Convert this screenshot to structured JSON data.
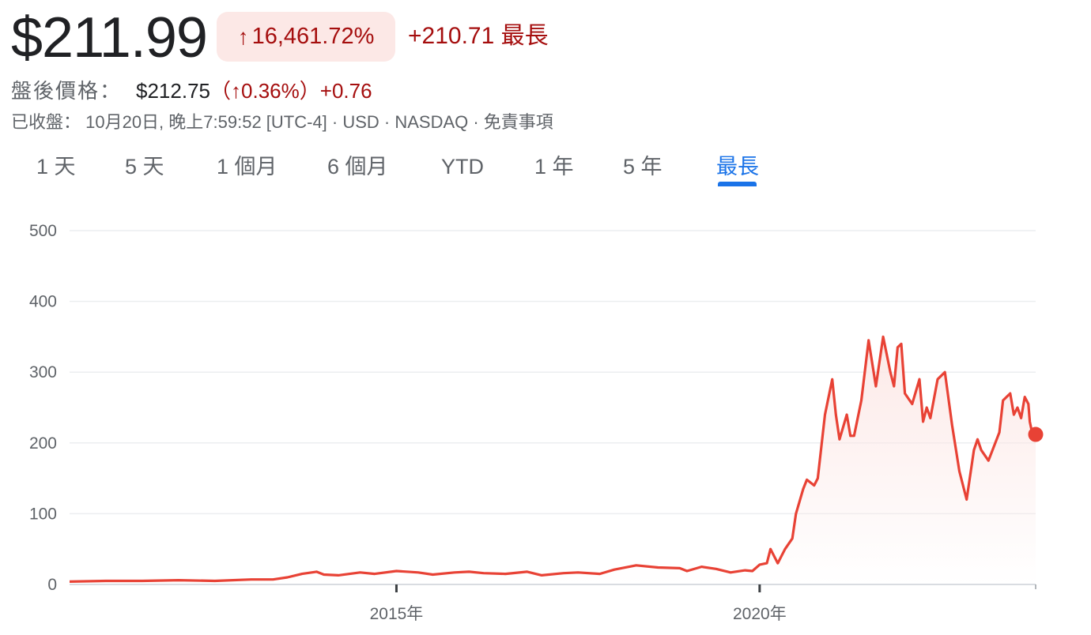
{
  "header": {
    "price": "$211.99",
    "change_arrow": "↑",
    "change_pct": "16,461.72%",
    "change_abs_period": "+210.71 最長"
  },
  "after_hours": {
    "label": "盤後價格：",
    "price": "$212.75",
    "open_paren": "（",
    "arrow": "↑",
    "pct": "0.36%",
    "close_paren": "）",
    "abs": "+0.76"
  },
  "meta": "已收盤： 10月20日, 晚上7:59:52 [UTC-4] · USD · NASDAQ · 免責事項",
  "tabs": [
    "1 天",
    "5 天",
    "1 個月",
    "6 個月",
    "YTD",
    "1 年",
    "5 年",
    "最長"
  ],
  "active_tab": "最長",
  "colors": {
    "line": "#e84235",
    "fill": "#fce8e6",
    "badge_bg": "#fce8e6",
    "negative_text": "#a50e0e",
    "accent": "#1a73e8"
  },
  "chart_data": {
    "type": "area",
    "x_ticks": [
      "2015年",
      "2020年"
    ],
    "y_ticks": [
      0,
      100,
      200,
      300,
      400,
      500
    ],
    "ylim": [
      0,
      500
    ],
    "xlim": [
      2010.5,
      2023.8
    ],
    "grid": true,
    "series": [
      {
        "x": [
          2010.5,
          2011.0,
          2011.5,
          2012.0,
          2012.5,
          2013.0,
          2013.3,
          2013.5,
          2013.7,
          2013.9,
          2014.0,
          2014.2,
          2014.5,
          2014.7,
          2015.0,
          2015.3,
          2015.5,
          2015.8,
          2016.0,
          2016.2,
          2016.5,
          2016.8,
          2017.0,
          2017.3,
          2017.5,
          2017.8,
          2018.0,
          2018.3,
          2018.6,
          2018.9,
          2019.0,
          2019.2,
          2019.4,
          2019.6,
          2019.8,
          2019.9,
          2020.0,
          2020.1,
          2020.15,
          2020.25,
          2020.35,
          2020.45,
          2020.5,
          2020.6,
          2020.65,
          2020.75,
          2020.8,
          2020.9,
          2021.0,
          2021.05,
          2021.1,
          2021.2,
          2021.25,
          2021.3,
          2021.4,
          2021.5,
          2021.6,
          2021.7,
          2021.8,
          2021.85,
          2021.9,
          2021.95,
          2022.0,
          2022.1,
          2022.2,
          2022.25,
          2022.3,
          2022.35,
          2022.45,
          2022.55,
          2022.65,
          2022.75,
          2022.85,
          2022.9,
          2022.95,
          2023.0,
          2023.05,
          2023.15,
          2023.3,
          2023.35,
          2023.45,
          2023.5,
          2023.55,
          2023.6,
          2023.65,
          2023.7,
          2023.72,
          2023.75,
          2023.8
        ],
        "y": [
          4,
          5,
          5,
          6,
          5,
          7,
          7,
          10,
          15,
          18,
          14,
          13,
          17,
          15,
          19,
          17,
          14,
          17,
          18,
          16,
          15,
          18,
          13,
          16,
          17,
          15,
          21,
          27,
          24,
          23,
          19,
          25,
          22,
          17,
          20,
          19,
          28,
          30,
          50,
          30,
          50,
          65,
          100,
          135,
          148,
          140,
          150,
          240,
          290,
          240,
          205,
          240,
          210,
          210,
          260,
          345,
          280,
          350,
          300,
          280,
          335,
          340,
          270,
          255,
          290,
          230,
          250,
          235,
          290,
          300,
          225,
          160,
          120,
          155,
          190,
          205,
          190,
          175,
          215,
          260,
          270,
          240,
          250,
          235,
          265,
          255,
          230,
          215,
          212
        ]
      }
    ]
  }
}
